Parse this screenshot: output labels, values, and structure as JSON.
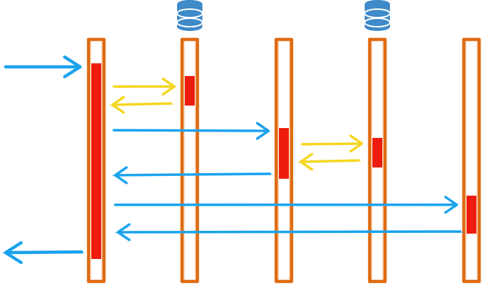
{
  "colors": {
    "lifeline": "#e06a10",
    "activation": "#ee1c0e",
    "call": "#1aa3ee",
    "local_call": "#f5d621",
    "database": "#3f8ac8"
  },
  "icons": {
    "database": "database-icon"
  },
  "lifelines": [
    {
      "id": "lifeline-1",
      "database": false
    },
    {
      "id": "lifeline-2",
      "database": true
    },
    {
      "id": "lifeline-3",
      "database": false
    },
    {
      "id": "lifeline-4",
      "database": true
    },
    {
      "id": "lifeline-5",
      "database": false
    }
  ],
  "messages": [
    {
      "id": "incoming-request",
      "from": "external",
      "to": "lifeline-1",
      "kind": "call"
    },
    {
      "id": "query-1",
      "from": "lifeline-1",
      "to": "lifeline-2",
      "kind": "local_call"
    },
    {
      "id": "query-1-result",
      "from": "lifeline-2",
      "to": "lifeline-1",
      "kind": "local_call"
    },
    {
      "id": "call-service-3",
      "from": "lifeline-1",
      "to": "lifeline-3",
      "kind": "call"
    },
    {
      "id": "query-2",
      "from": "lifeline-3",
      "to": "lifeline-4",
      "kind": "local_call"
    },
    {
      "id": "query-2-result",
      "from": "lifeline-4",
      "to": "lifeline-3",
      "kind": "local_call"
    },
    {
      "id": "service-3-response",
      "from": "lifeline-3",
      "to": "lifeline-1",
      "kind": "call"
    },
    {
      "id": "call-service-5",
      "from": "lifeline-1",
      "to": "lifeline-5",
      "kind": "call"
    },
    {
      "id": "service-5-response",
      "from": "lifeline-5",
      "to": "lifeline-1",
      "kind": "call"
    },
    {
      "id": "outgoing-response",
      "from": "lifeline-1",
      "to": "external",
      "kind": "call"
    }
  ]
}
